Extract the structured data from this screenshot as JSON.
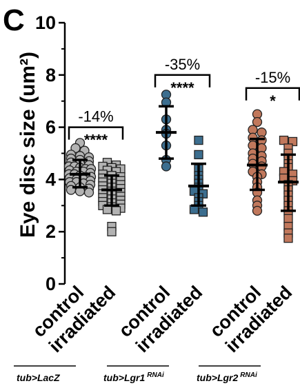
{
  "chart_data": {
    "type": "scatter",
    "panel_letter": "C",
    "ylabel": "Eye disc size (um²)",
    "ylim": [
      0,
      10
    ],
    "yticks": [
      0,
      2,
      4,
      6,
      8,
      10
    ],
    "ytick_labels": [
      "0",
      "2",
      "4",
      "6",
      "8",
      "10"
    ],
    "categories": [
      "control",
      "irradiated",
      "control",
      "irradiated",
      "control",
      "irradiated"
    ],
    "groups": [
      {
        "genotype": "tub>LacZ",
        "genotype_base": "tub>LacZ",
        "genotype_sup": "",
        "percent_change": "-14%",
        "significance": "****",
        "bracket_y": 6.0,
        "control": {
          "color": "#b3b3b3",
          "marker": "circle",
          "mean": 4.2,
          "sd_low": 3.7,
          "sd_high": 4.75,
          "values": [
            5.4,
            5.2,
            5.1,
            4.95,
            4.9,
            4.85,
            4.8,
            4.75,
            4.7,
            4.65,
            4.6,
            4.55,
            4.5,
            4.5,
            4.45,
            4.4,
            4.4,
            4.35,
            4.3,
            4.3,
            4.25,
            4.2,
            4.2,
            4.15,
            4.1,
            4.1,
            4.05,
            4.0,
            4.0,
            3.95,
            3.9,
            3.9,
            3.85,
            3.8,
            3.75,
            3.7,
            3.65,
            3.6,
            3.55,
            3.5
          ]
        },
        "irradiated": {
          "color": "#b3b3b3",
          "marker": "square",
          "mean": 3.6,
          "sd_low": 3.0,
          "sd_high": 4.15,
          "values": [
            4.65,
            4.55,
            4.5,
            4.45,
            4.4,
            4.35,
            4.3,
            4.2,
            4.15,
            4.1,
            4.05,
            4.0,
            3.95,
            3.9,
            3.85,
            3.8,
            3.75,
            3.7,
            3.65,
            3.6,
            3.55,
            3.5,
            3.45,
            3.4,
            3.35,
            3.3,
            3.25,
            3.2,
            3.15,
            3.1,
            3.05,
            3.0,
            2.95,
            2.9,
            2.85,
            2.8,
            2.2,
            2.0
          ]
        }
      },
      {
        "genotype": "tub>Lgr1 RNAi",
        "genotype_base": "tub>Lgr1",
        "genotype_sup": "RNAi",
        "percent_change": "-35%",
        "significance": "****",
        "bracket_y": 8.0,
        "control": {
          "color": "#3c6e8f",
          "marker": "circle",
          "mean": 5.8,
          "sd_low": 4.8,
          "sd_high": 6.8,
          "values": [
            7.25,
            6.95,
            6.3,
            5.9,
            5.75,
            5.3,
            4.75,
            4.5
          ]
        },
        "irradiated": {
          "color": "#3c6e8f",
          "marker": "square",
          "mean": 3.75,
          "sd_low": 3.0,
          "sd_high": 4.6,
          "values": [
            5.5,
            4.95,
            4.4,
            4.15,
            4.0,
            3.85,
            3.7,
            3.55,
            3.45,
            3.3,
            3.15,
            3.0,
            2.85,
            2.75
          ]
        }
      },
      {
        "genotype": "tub>Lgr2 RNAi",
        "genotype_base": "tub>Lgr2",
        "genotype_sup": "RNAi",
        "percent_change": "-15%",
        "significance": "*",
        "bracket_y": 7.5,
        "control": {
          "color": "#c1785c",
          "marker": "circle",
          "mean": 4.55,
          "sd_low": 3.6,
          "sd_high": 5.55,
          "values": [
            6.5,
            6.2,
            5.9,
            5.8,
            5.6,
            5.5,
            5.3,
            5.2,
            5.0,
            4.9,
            4.8,
            4.7,
            4.6,
            4.5,
            4.3,
            4.2,
            4.1,
            3.9,
            3.7,
            3.5,
            3.2,
            3.0,
            2.8
          ]
        },
        "irradiated": {
          "color": "#c1785c",
          "marker": "square",
          "mean": 3.9,
          "sd_low": 2.8,
          "sd_high": 4.95,
          "values": [
            5.5,
            5.45,
            5.2,
            5.0,
            4.8,
            4.6,
            4.45,
            4.3,
            4.2,
            4.05,
            3.95,
            3.8,
            3.6,
            3.4,
            3.2,
            3.0,
            2.8,
            2.5,
            2.2,
            1.95,
            1.75
          ]
        }
      }
    ]
  }
}
